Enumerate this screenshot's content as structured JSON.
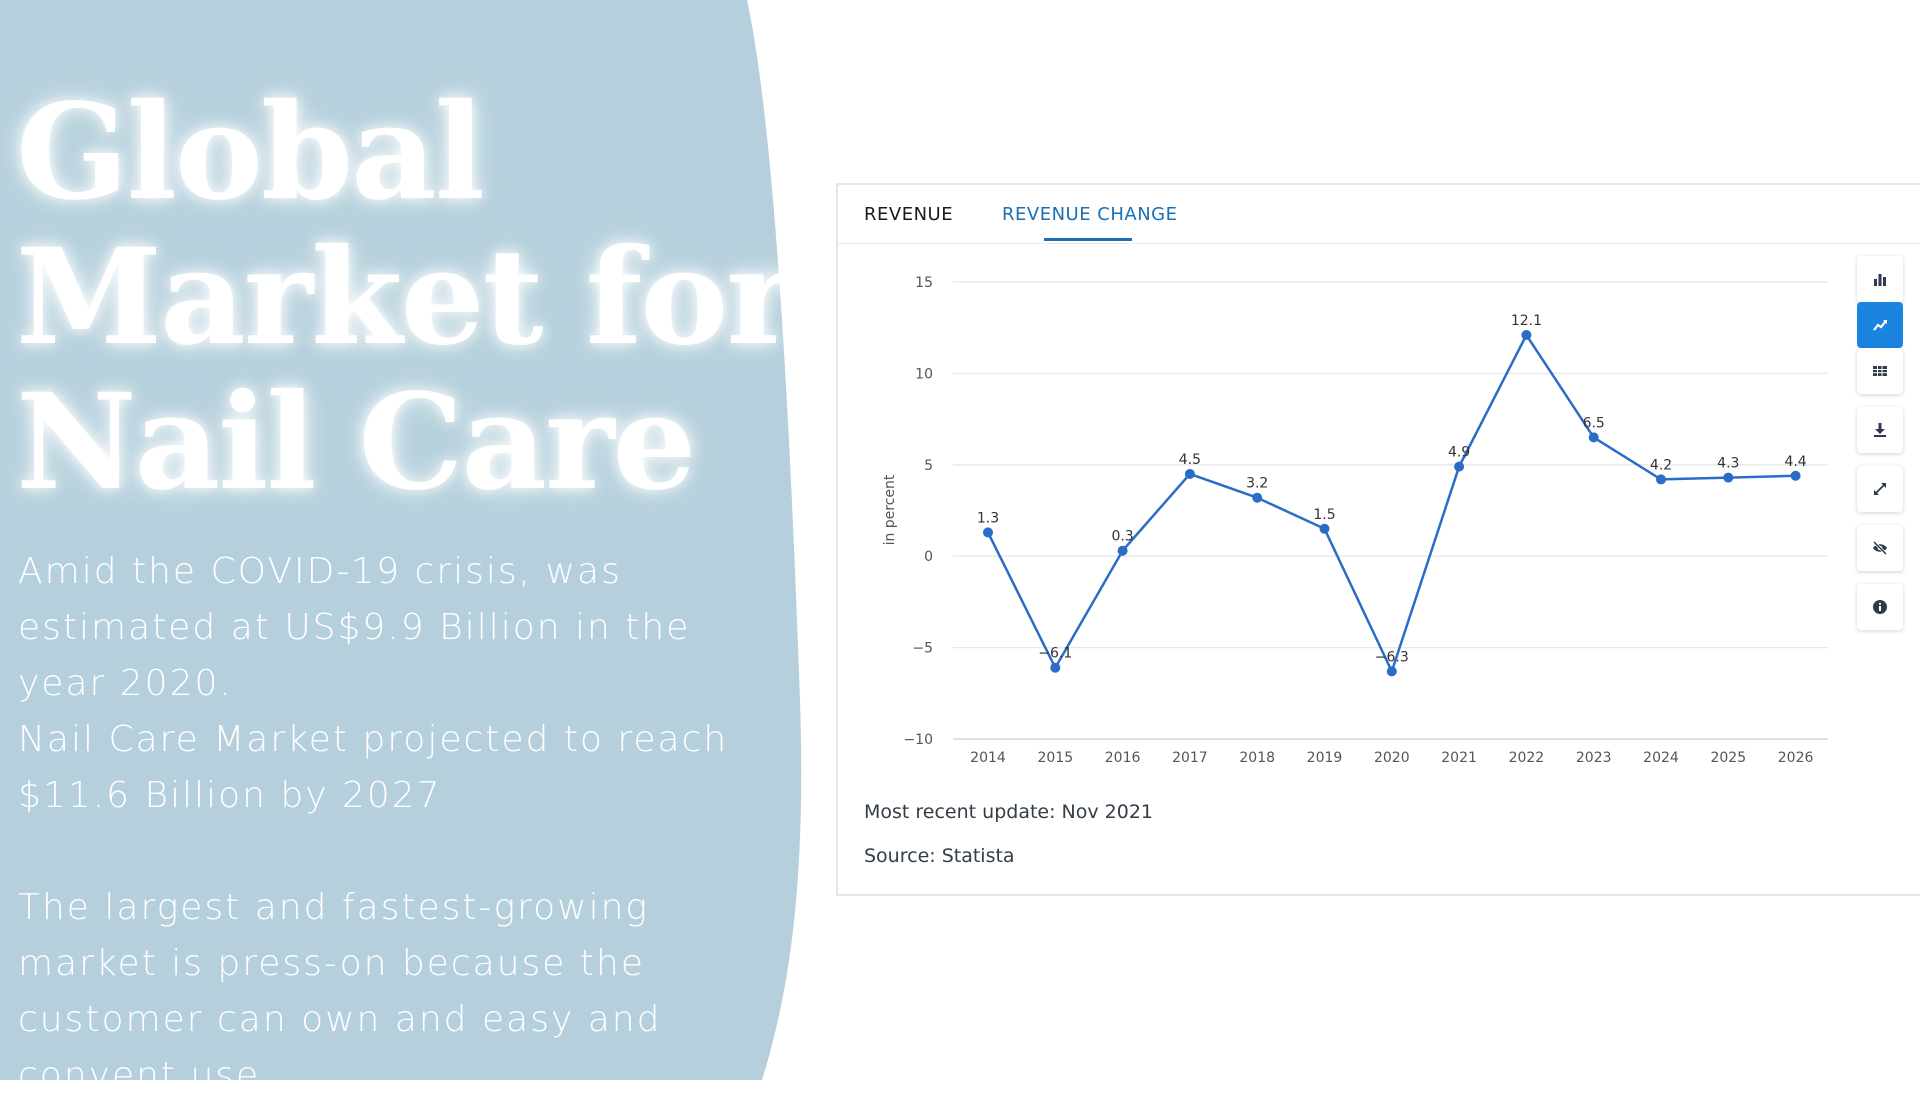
{
  "slide": {
    "title_lines": [
      "Global",
      "Market for",
      "Nail Care"
    ],
    "paragraphs": [
      "Amid the COVID-19 crisis, was estimated at US$9.9 Billion in the year 2020.",
      "Nail Care Market projected to reach $11.6 Billion by 2027",
      "The largest and fastest-growing market is press-on because the customer can own and easy and convent use."
    ],
    "colors": {
      "panel": "#b5d0dc",
      "text": "#ffffff"
    }
  },
  "widget": {
    "tabs": [
      {
        "label": "REVENUE",
        "active": false
      },
      {
        "label": "REVENUE CHANGE",
        "active": true
      }
    ],
    "sidebar_icons": [
      {
        "name": "bar-chart-icon",
        "active": false
      },
      {
        "name": "line-chart-icon",
        "active": true
      },
      {
        "name": "table-icon",
        "active": false
      },
      {
        "name": "download-icon",
        "active": false
      },
      {
        "name": "fullscreen-icon",
        "active": false
      },
      {
        "name": "hide-icon",
        "active": false
      },
      {
        "name": "info-icon",
        "active": false
      }
    ],
    "update_text": "Most recent update: Nov 2021",
    "source_text": "Source: Statista",
    "accent_color": "#1a84e0"
  },
  "chart_data": {
    "type": "line",
    "ylabel": "in percent",
    "x": [
      "2014",
      "2015",
      "2016",
      "2017",
      "2018",
      "2019",
      "2020",
      "2021",
      "2022",
      "2023",
      "2024",
      "2025",
      "2026"
    ],
    "values": [
      1.3,
      -6.1,
      0.3,
      4.5,
      3.2,
      1.5,
      -6.3,
      4.9,
      12.1,
      6.5,
      4.2,
      4.3,
      4.4
    ],
    "labels": [
      "1.3",
      "−6.1",
      "0.3",
      "4.5",
      "3.2",
      "1.5",
      "−6.3",
      "4.9",
      "12.1",
      "6.5",
      "4.2",
      "4.3",
      "4.4"
    ],
    "yticks": [
      15,
      10,
      5,
      0,
      -5,
      -10
    ],
    "ytick_labels": [
      "15",
      "10",
      "5",
      "0",
      "−5",
      "−10"
    ],
    "ylim": [
      -10,
      15
    ],
    "grid": true,
    "line_color": "#2a6dc6"
  }
}
